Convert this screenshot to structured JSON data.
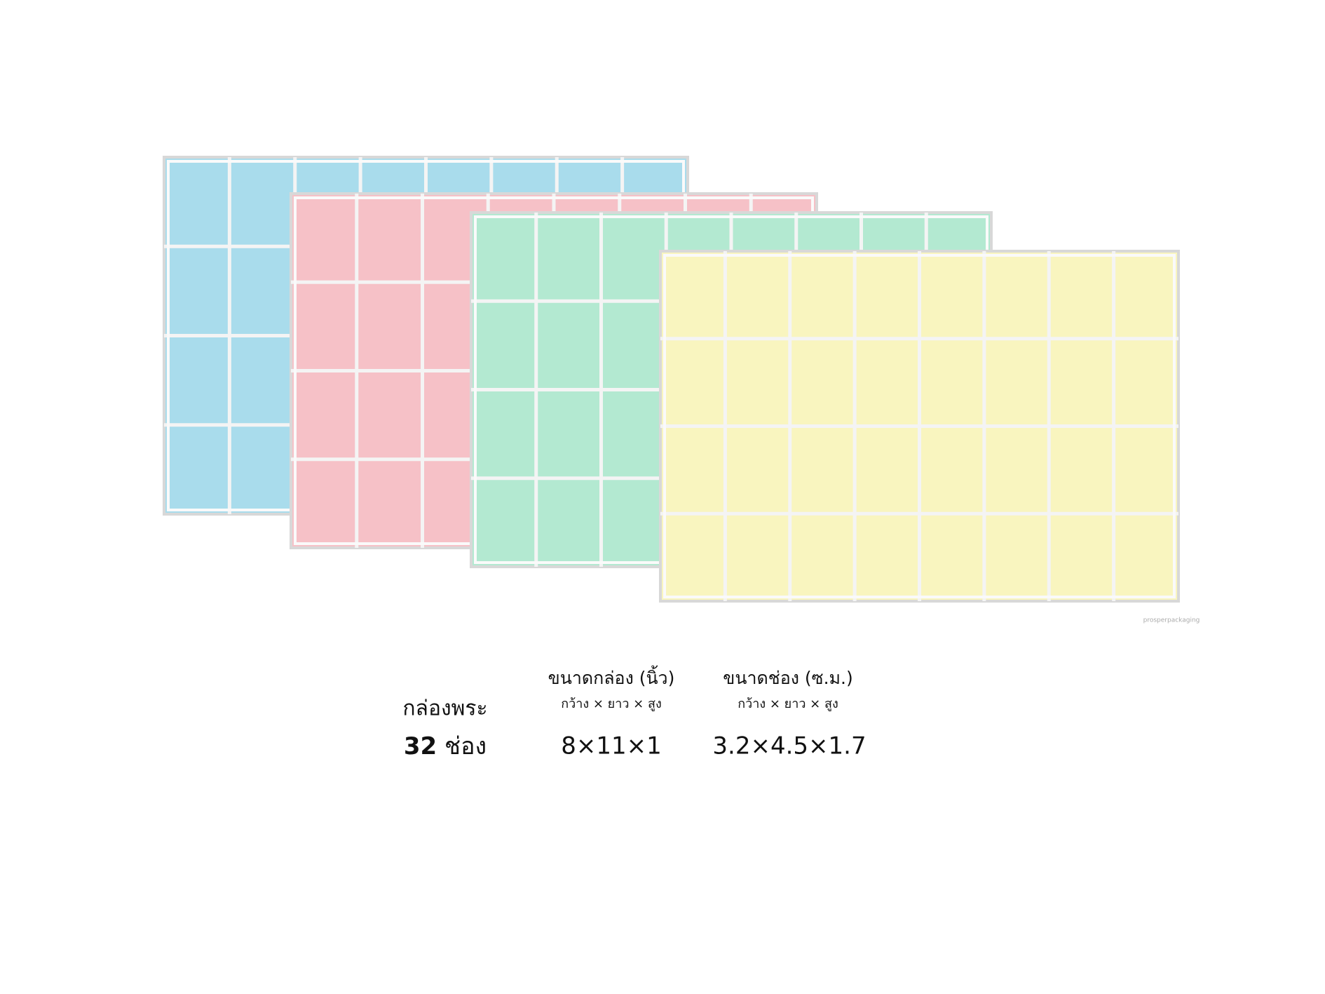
{
  "product": {
    "name": "กล่องพระ",
    "count": "32",
    "unit": "ช่อง"
  },
  "box_size": {
    "title": "ขนาดกล่อง (นิ้ว)",
    "subtitle": "กว้าง × ยาว × สูง",
    "value": "8×11×1"
  },
  "slot_size": {
    "title": "ขนาดช่อง (ซ.ม.)",
    "subtitle": "กว้าง × ยาว × สูง",
    "value": "3.2×4.5×1.7"
  },
  "watermark": "prosperpackaging"
}
